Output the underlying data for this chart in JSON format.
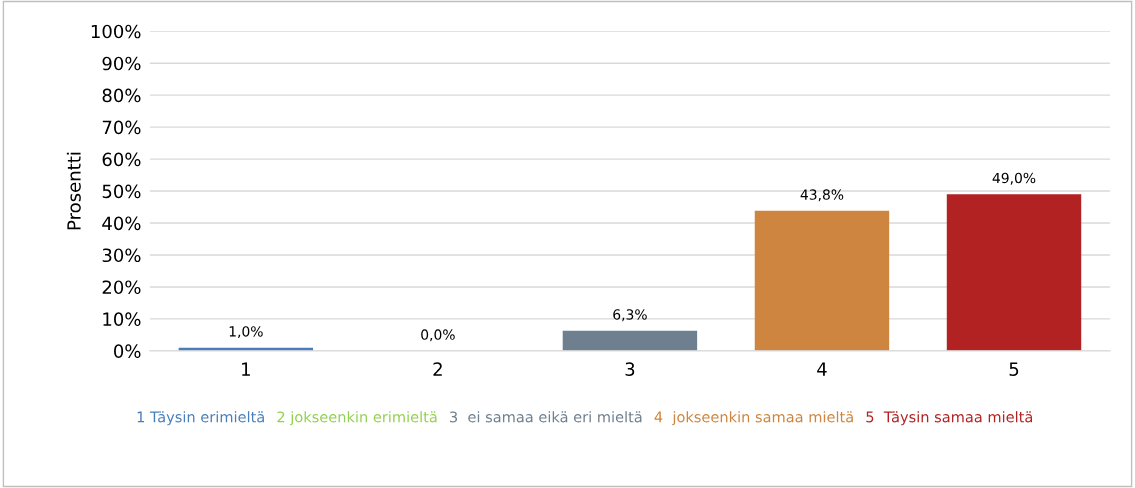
{
  "chart_data": {
    "type": "bar",
    "ylabel": "Prosentti",
    "categories": [
      "1",
      "2",
      "3",
      "4",
      "5"
    ],
    "values": [
      1.0,
      0.0,
      6.3,
      43.8,
      49.0
    ],
    "value_labels": [
      "1,0%",
      "0,0%",
      "6,3%",
      "43,8%",
      "49,0%"
    ],
    "colors": [
      "#4a7ebb",
      "#92d050",
      "#6e7f8f",
      "#cd853f",
      "#b22222"
    ],
    "ylim": [
      0,
      100
    ],
    "yticks": [
      {
        "value": 0,
        "label": "0%"
      },
      {
        "value": 10,
        "label": "10%"
      },
      {
        "value": 20,
        "label": "20%"
      },
      {
        "value": 30,
        "label": "30%"
      },
      {
        "value": 40,
        "label": "40%"
      },
      {
        "value": 50,
        "label": "50%"
      },
      {
        "value": 60,
        "label": "60%"
      },
      {
        "value": 70,
        "label": "70%"
      },
      {
        "value": 80,
        "label": "80%"
      },
      {
        "value": 90,
        "label": "90%"
      },
      {
        "value": 100,
        "label": "100%"
      }
    ],
    "grid": "y",
    "annotations": [
      "1 Täysin erimieltä",
      "2 jokseenkin erimieltä",
      "3  ei samaa eikä eri mieltä",
      "4  jokseenkin samaa mieltä",
      "5  Täysin samaa mieltä"
    ]
  }
}
